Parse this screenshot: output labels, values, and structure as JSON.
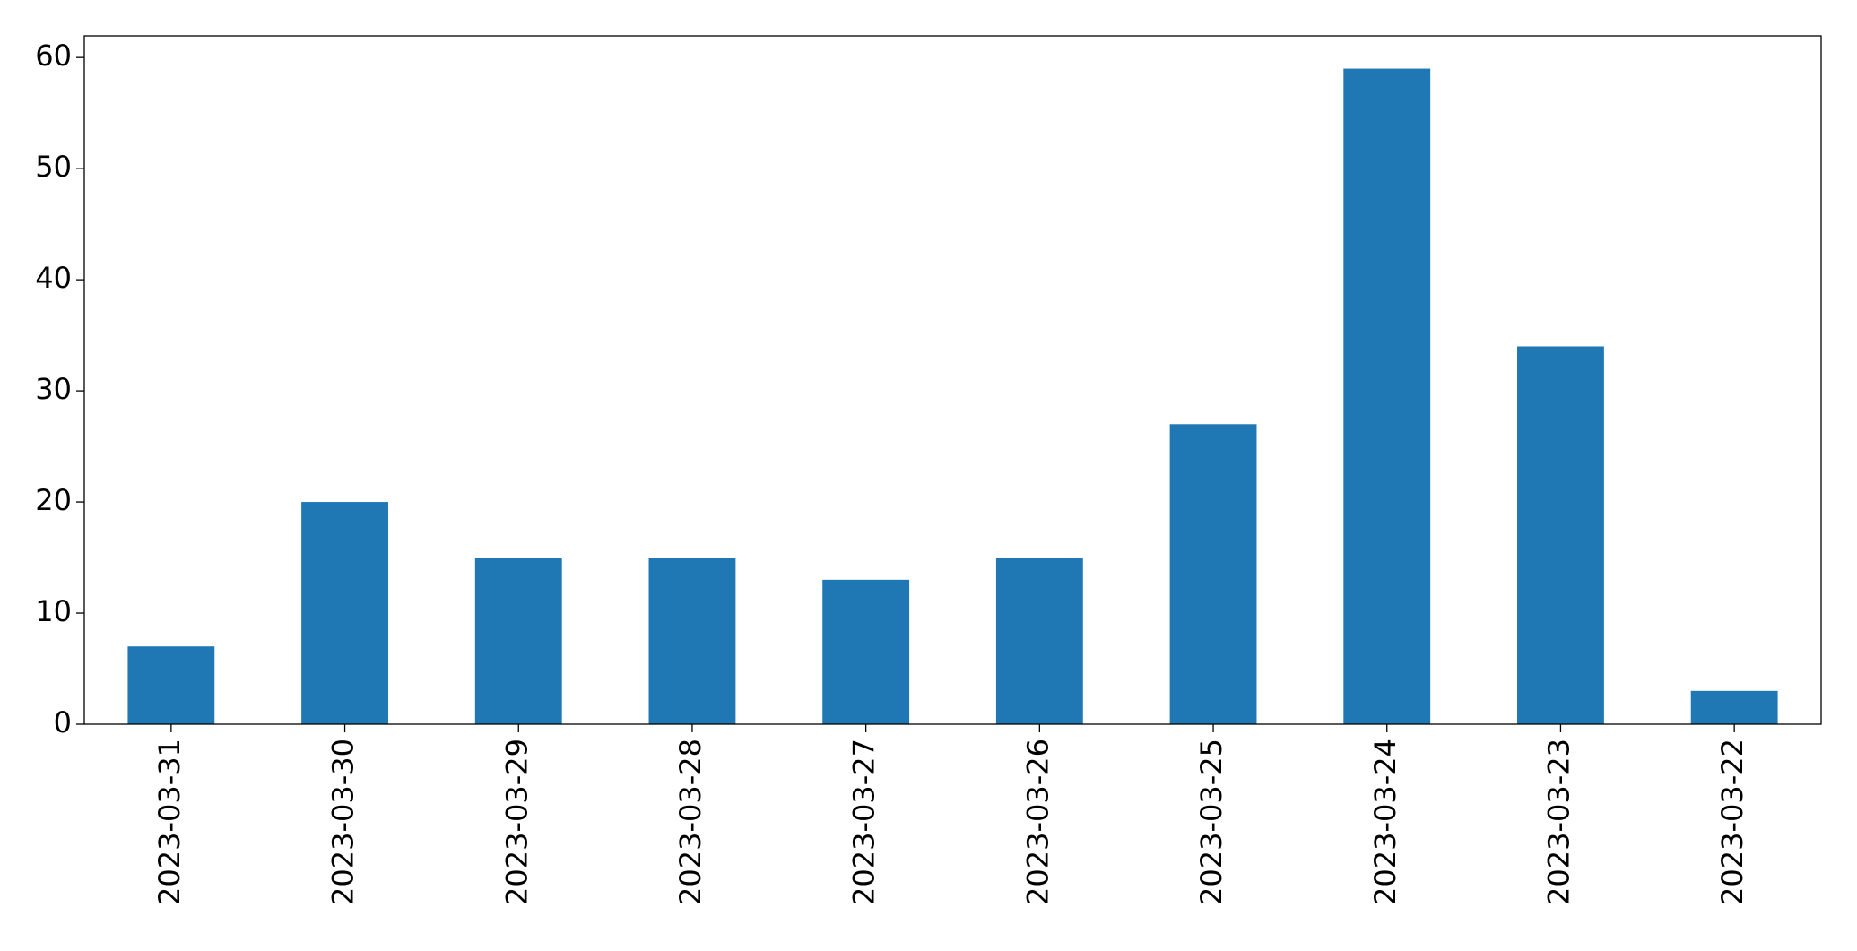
{
  "chart_data": {
    "type": "bar",
    "categories": [
      "2023-03-31",
      "2023-03-30",
      "2023-03-29",
      "2023-03-28",
      "2023-03-27",
      "2023-03-26",
      "2023-03-25",
      "2023-03-24",
      "2023-03-23",
      "2023-03-22"
    ],
    "values": [
      7,
      20,
      15,
      15,
      13,
      15,
      27,
      59,
      34,
      3
    ],
    "color": "#1f77b4",
    "ylim": [
      0,
      61.95
    ],
    "yticks": [
      0,
      10,
      20,
      30,
      40,
      50,
      60
    ],
    "grid": false
  }
}
